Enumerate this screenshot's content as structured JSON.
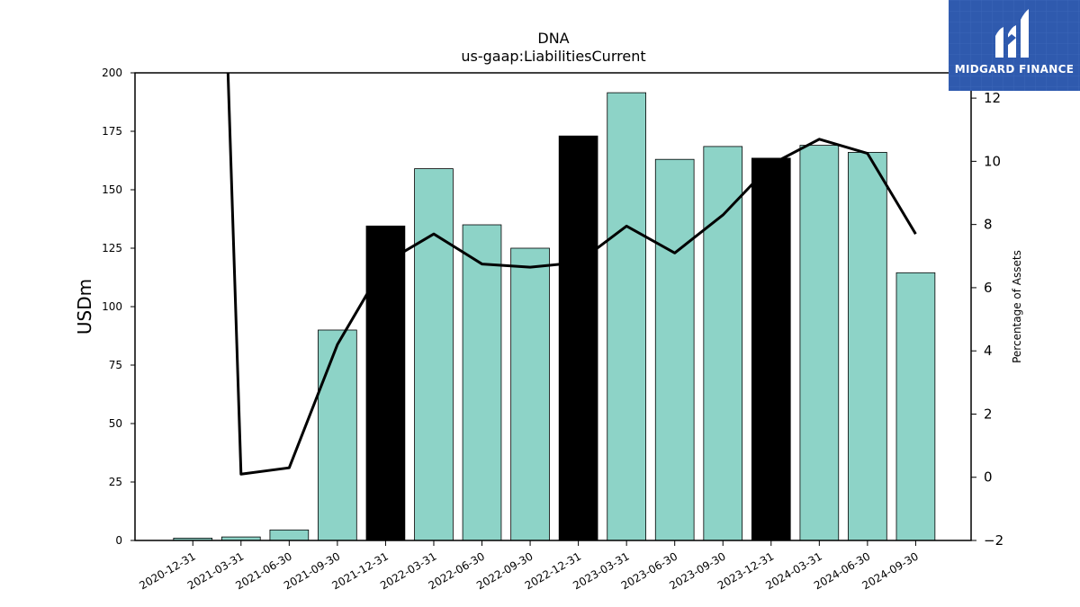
{
  "colors": {
    "bar_regular": "#8dd3c7",
    "bar_highlight": "#000000",
    "line": "#000000",
    "logo_bg": "#2f5aae"
  },
  "logo": {
    "text": "MIDGARD FINANCE"
  },
  "chart_data": {
    "type": "bar",
    "title": "DNA",
    "subtitle": "us-gaap:LiabilitiesCurrent",
    "ylabel": "USDm",
    "y2label": "Percentage of Assets",
    "ylim": [
      0,
      200
    ],
    "y2lim": [
      -2,
      12.8
    ],
    "yticks": [
      0,
      25,
      50,
      75,
      100,
      125,
      150,
      175,
      200
    ],
    "y2ticks": [
      -2,
      0,
      2,
      4,
      6,
      8,
      10,
      12
    ],
    "grid": false,
    "categories": [
      "2020-12-31",
      "2021-03-31",
      "2021-06-30",
      "2021-09-30",
      "2021-12-31",
      "2022-03-31",
      "2022-06-30",
      "2022-09-30",
      "2022-12-31",
      "2023-03-31",
      "2023-06-30",
      "2023-09-30",
      "2023-12-31",
      "2024-03-31",
      "2024-06-30",
      "2024-09-30"
    ],
    "series": [
      {
        "type": "bar",
        "axis": "left",
        "values": [
          1,
          1.5,
          4.5,
          90,
          134.5,
          159,
          135,
          125,
          173,
          191.5,
          163,
          168.5,
          163.5,
          169,
          166,
          114.5
        ],
        "highlighted": [
          false,
          false,
          false,
          false,
          true,
          false,
          false,
          false,
          true,
          false,
          false,
          false,
          true,
          false,
          false,
          false
        ]
      },
      {
        "type": "line",
        "axis": "right",
        "values": [
          null,
          0.1,
          0.3,
          4.2,
          6.8,
          7.7,
          6.75,
          6.65,
          6.8,
          7.95,
          7.1,
          8.3,
          9.9,
          10.7,
          10.25,
          7.7
        ],
        "entry_from_above": true
      }
    ]
  }
}
